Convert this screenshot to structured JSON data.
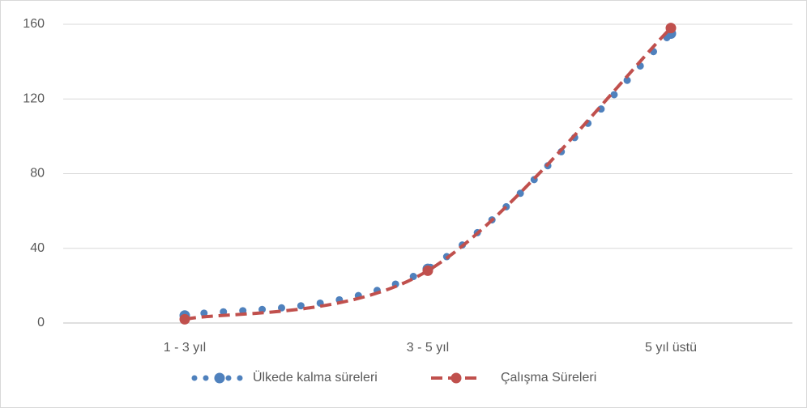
{
  "chart_data": {
    "type": "line",
    "categories": [
      "1 - 3 yıl",
      "3 - 5 yıl",
      "5 yıl üstü"
    ],
    "series": [
      {
        "name": "Ülkede kalma süreleri",
        "color": "#4f81bd",
        "style": "dotted",
        "values": [
          4,
          29,
          155
        ]
      },
      {
        "name": "Çalışma Süreleri",
        "color": "#c0504d",
        "style": "dashed",
        "values": [
          2,
          28,
          158
        ]
      }
    ],
    "ylim": [
      0,
      160
    ],
    "yticks": [
      0,
      40,
      80,
      120,
      160
    ],
    "grid": true,
    "smooth": true,
    "legend": "bottom"
  }
}
